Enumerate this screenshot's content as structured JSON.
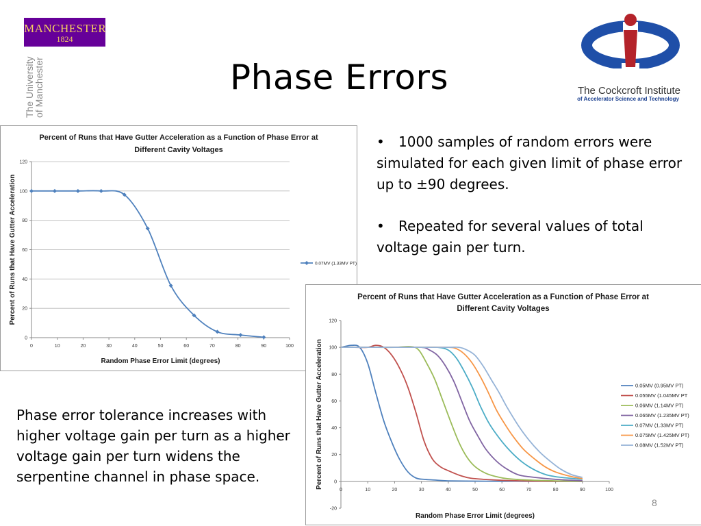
{
  "slide": {
    "title": "Phase Errors",
    "page_number": "8",
    "logos": {
      "manchester_text": "MANCHESTER",
      "manchester_year": "1824",
      "university_vertical_line1": "The University",
      "university_vertical_line2": "of Manchester",
      "cockcroft_name": "The Cockcroft Institute",
      "cockcroft_subtitle": "of Accelerator Science and Technology"
    },
    "bullets": [
      "1000 samples of random errors were simulated for each given limit of phase error up to ±90 degrees.",
      "Repeated for several values of total voltage gain per turn."
    ],
    "bullet_symbol": "•",
    "description": "Phase error tolerance increases with higher voltage gain per turn as a higher voltage gain per turn widens the serpentine channel in phase space."
  },
  "chart_data": [
    {
      "type": "line",
      "title_line1": "Percent of Runs that Have Gutter Acceleration as a Function of Phase Error at",
      "title_line2": "Different Cavity Voltages",
      "xlabel": "Random Phase Error Limit (degrees)",
      "ylabel": "Percent of Runs that Have Gutter Acceleration",
      "xlim": [
        0,
        100
      ],
      "ylim": [
        0,
        120
      ],
      "xticks": [
        0,
        10,
        20,
        30,
        40,
        50,
        60,
        70,
        80,
        90,
        100
      ],
      "yticks": [
        0,
        20,
        40,
        60,
        80,
        100,
        120
      ],
      "grid": "horizontal",
      "legend_position": "right",
      "series": [
        {
          "name": "0.07MV (1.33MV PT)",
          "color": "#4f81bd",
          "markers": true,
          "x": [
            0,
            9,
            18,
            27,
            36,
            45,
            54,
            63,
            72,
            81,
            90
          ],
          "y": [
            100,
            100,
            100,
            100,
            97.5,
            74.5,
            35.5,
            15.2,
            4,
            1.8,
            0.3
          ]
        }
      ]
    },
    {
      "type": "line",
      "title_line1": "Percent of Runs that Have Gutter Acceleration as a Function of Phase Error at",
      "title_line2": "Different Cavity Voltages",
      "xlabel": "Random Phase Error Limit (degrees)",
      "ylabel": "Percent of Runs that Have Gutter Acceleration",
      "xlim": [
        0,
        100
      ],
      "ylim": [
        -20,
        120
      ],
      "xticks": [
        0,
        10,
        20,
        30,
        40,
        50,
        60,
        70,
        80,
        90,
        100
      ],
      "yticks": [
        -20,
        0,
        20,
        40,
        60,
        80,
        100,
        120
      ],
      "grid": "none",
      "legend_position": "right",
      "series": [
        {
          "name": "0.05MV (0.95MV PT)",
          "color": "#4f81bd",
          "x": [
            0,
            4,
            7,
            10,
            13,
            16,
            19,
            22,
            25,
            28,
            31,
            35,
            40,
            50,
            60,
            70,
            80,
            90
          ],
          "y": [
            100,
            101.5,
            100,
            88,
            66,
            45,
            29,
            16,
            7,
            2.5,
            1.5,
            1,
            0.4,
            0.2,
            0.1,
            0.1,
            0,
            0
          ]
        },
        {
          "name": "0.055MV (1.045MV PT",
          "color": "#c0504d",
          "x": [
            0,
            5,
            10,
            13,
            16,
            19,
            22,
            25,
            28,
            31,
            34,
            37,
            40,
            45,
            50,
            60,
            70,
            80,
            90
          ],
          "y": [
            100,
            100,
            100,
            101.5,
            100,
            94,
            84,
            70,
            51,
            30,
            17,
            11,
            8,
            4,
            2,
            0.8,
            0.3,
            0.1,
            0
          ]
        },
        {
          "name": "0.06MV (1.14MV PT)",
          "color": "#9bbb59",
          "x": [
            0,
            10,
            20,
            26,
            29,
            32,
            35,
            38,
            41,
            44,
            47,
            50,
            54,
            58,
            62,
            70,
            80,
            90
          ],
          "y": [
            100,
            100,
            100,
            100.5,
            98,
            88,
            76,
            60,
            44,
            29,
            18,
            11,
            6,
            3.5,
            2,
            1,
            0.4,
            0.1
          ]
        },
        {
          "name": "0.065MV (1.235MV PT)",
          "color": "#8064a2",
          "x": [
            0,
            10,
            20,
            30,
            33,
            36,
            39,
            42,
            45,
            48,
            51,
            54,
            58,
            62,
            66,
            70,
            80,
            90
          ],
          "y": [
            100,
            100,
            100,
            100,
            98,
            94,
            86,
            75,
            60,
            45,
            34,
            24,
            15,
            9,
            5,
            3.5,
            1.5,
            0.5
          ]
        },
        {
          "name": "0.07MV (1.33MV PT)",
          "color": "#4bacc6",
          "x": [
            0,
            10,
            20,
            30,
            36,
            40,
            43,
            46,
            49,
            52,
            55,
            58,
            62,
            66,
            70,
            75,
            80,
            90
          ],
          "y": [
            100,
            100,
            100,
            100,
            100,
            98,
            92,
            82,
            70,
            56,
            44,
            35,
            25,
            17,
            11,
            6,
            3.5,
            1.5
          ]
        },
        {
          "name": "0.075MV (1.425MV PT)",
          "color": "#f79646",
          "x": [
            0,
            10,
            20,
            30,
            40,
            43,
            46,
            49,
            52,
            55,
            58,
            61,
            64,
            68,
            72,
            76,
            80,
            85,
            90
          ],
          "y": [
            100,
            100,
            100,
            100,
            100,
            99,
            95,
            88,
            78,
            66,
            53,
            43,
            34,
            24,
            17,
            11,
            7,
            4,
            2
          ]
        },
        {
          "name": "0.08MV (1.52MV PT)",
          "color": "#95b3d7",
          "x": [
            0,
            10,
            20,
            30,
            40,
            44,
            47,
            50,
            53,
            56,
            59,
            62,
            66,
            70,
            74,
            78,
            82,
            86,
            90
          ],
          "y": [
            100,
            100,
            100,
            100,
            100,
            100,
            98,
            94,
            86,
            76,
            66,
            55,
            42,
            31,
            22,
            15,
            9,
            5,
            3
          ]
        }
      ]
    }
  ]
}
